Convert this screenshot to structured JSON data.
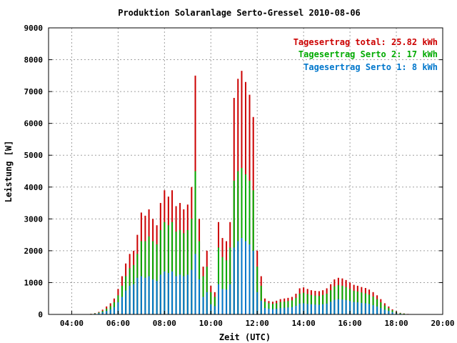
{
  "chart_data": {
    "type": "bar",
    "title": "Produktion Solaranlage Serto-Gressel 2010-08-06",
    "xlabel": "Zeit (UTC)",
    "ylabel": "Leistung [W]",
    "xlim": [
      3.0,
      20.0
    ],
    "ylim": [
      0,
      9000
    ],
    "x_ticks": [
      "04:00",
      "06:00",
      "08:00",
      "10:00",
      "12:00",
      "14:00",
      "16:00",
      "18:00",
      "20:00"
    ],
    "y_ticks": [
      "0",
      "1000",
      "2000",
      "3000",
      "4000",
      "5000",
      "6000",
      "7000",
      "8000",
      "9000"
    ],
    "grid": true,
    "legend_position": "top-right",
    "legend": [
      {
        "label": "Tagesertrag total: 25.82 kWh",
        "color": "#cc0000"
      },
      {
        "label": "Tagesertrag Serto 2: 17 kWh",
        "color": "#00aa00"
      },
      {
        "label": "Tagesertrag Serto 1: 8 kWh",
        "color": "#0077cc"
      }
    ],
    "series_colors": {
      "total": "#cc0000",
      "serto2": "#00aa00",
      "serto1": "#0077cc"
    },
    "x_hours": [
      4.83,
      5.0,
      5.17,
      5.33,
      5.5,
      5.67,
      5.83,
      6.0,
      6.17,
      6.33,
      6.5,
      6.67,
      6.83,
      7.0,
      7.17,
      7.33,
      7.5,
      7.67,
      7.83,
      8.0,
      8.17,
      8.33,
      8.5,
      8.67,
      8.83,
      9.0,
      9.17,
      9.33,
      9.5,
      9.67,
      9.83,
      10.0,
      10.17,
      10.33,
      10.5,
      10.67,
      10.83,
      11.0,
      11.17,
      11.33,
      11.5,
      11.67,
      11.83,
      12.0,
      12.17,
      12.33,
      12.5,
      12.67,
      12.83,
      13.0,
      13.17,
      13.33,
      13.5,
      13.67,
      13.83,
      14.0,
      14.17,
      14.33,
      14.5,
      14.67,
      14.83,
      15.0,
      15.17,
      15.33,
      15.5,
      15.67,
      15.83,
      16.0,
      16.17,
      16.33,
      16.5,
      16.67,
      16.83,
      17.0,
      17.17,
      17.33,
      17.5,
      17.67,
      17.83,
      18.0,
      18.17,
      18.33,
      18.5,
      18.67,
      18.83
    ],
    "total_w": [
      20,
      40,
      80,
      150,
      250,
      350,
      500,
      800,
      1200,
      1600,
      1900,
      2000,
      2500,
      3200,
      3100,
      3300,
      3000,
      2800,
      3500,
      3900,
      3700,
      3900,
      3400,
      3500,
      3300,
      3450,
      4000,
      7500,
      3000,
      1500,
      2000,
      900,
      700,
      2900,
      2400,
      2300,
      2900,
      6800,
      7400,
      7650,
      7300,
      6900,
      6200,
      2000,
      1200,
      500,
      420,
      400,
      430,
      480,
      500,
      520,
      550,
      650,
      820,
      850,
      800,
      760,
      740,
      730,
      760,
      820,
      950,
      1100,
      1150,
      1130,
      1080,
      1000,
      930,
      900,
      860,
      830,
      780,
      700,
      600,
      480,
      350,
      250,
      160,
      90,
      50,
      30,
      15,
      5,
      0
    ],
    "serto2_w": [
      15,
      30,
      60,
      110,
      180,
      260,
      380,
      600,
      900,
      1200,
      1450,
      1550,
      1900,
      2300,
      2300,
      2450,
      2300,
      2200,
      2650,
      2900,
      2800,
      2900,
      2600,
      2650,
      2550,
      2650,
      3000,
      4500,
      2300,
      1200,
      1500,
      700,
      550,
      2100,
      1800,
      1700,
      2100,
      4200,
      4500,
      4600,
      4400,
      4200,
      3900,
      1500,
      900,
      400,
      350,
      330,
      350,
      390,
      400,
      420,
      440,
      520,
      650,
      680,
      640,
      610,
      590,
      580,
      610,
      650,
      760,
      880,
      920,
      900,
      860,
      800,
      740,
      720,
      690,
      660,
      620,
      560,
      480,
      380,
      280,
      200,
      130,
      70,
      40,
      25,
      10,
      4,
      0
    ],
    "serto1_w": [
      10,
      20,
      40,
      70,
      110,
      160,
      230,
      380,
      550,
      750,
      900,
      950,
      1150,
      1200,
      1150,
      1200,
      1100,
      1050,
      1250,
      1350,
      1300,
      1350,
      1200,
      1250,
      1200,
      1250,
      1400,
      1900,
      1100,
      550,
      700,
      320,
      260,
      950,
      800,
      780,
      950,
      2100,
      2300,
      2400,
      2300,
      2200,
      2000,
      700,
      430,
      200,
      180,
      170,
      180,
      200,
      210,
      220,
      230,
      270,
      340,
      350,
      330,
      320,
      310,
      305,
      320,
      340,
      400,
      460,
      480,
      470,
      450,
      420,
      390,
      380,
      360,
      350,
      330,
      290,
      250,
      200,
      150,
      110,
      70,
      40,
      20,
      12,
      6,
      2,
      0
    ]
  }
}
